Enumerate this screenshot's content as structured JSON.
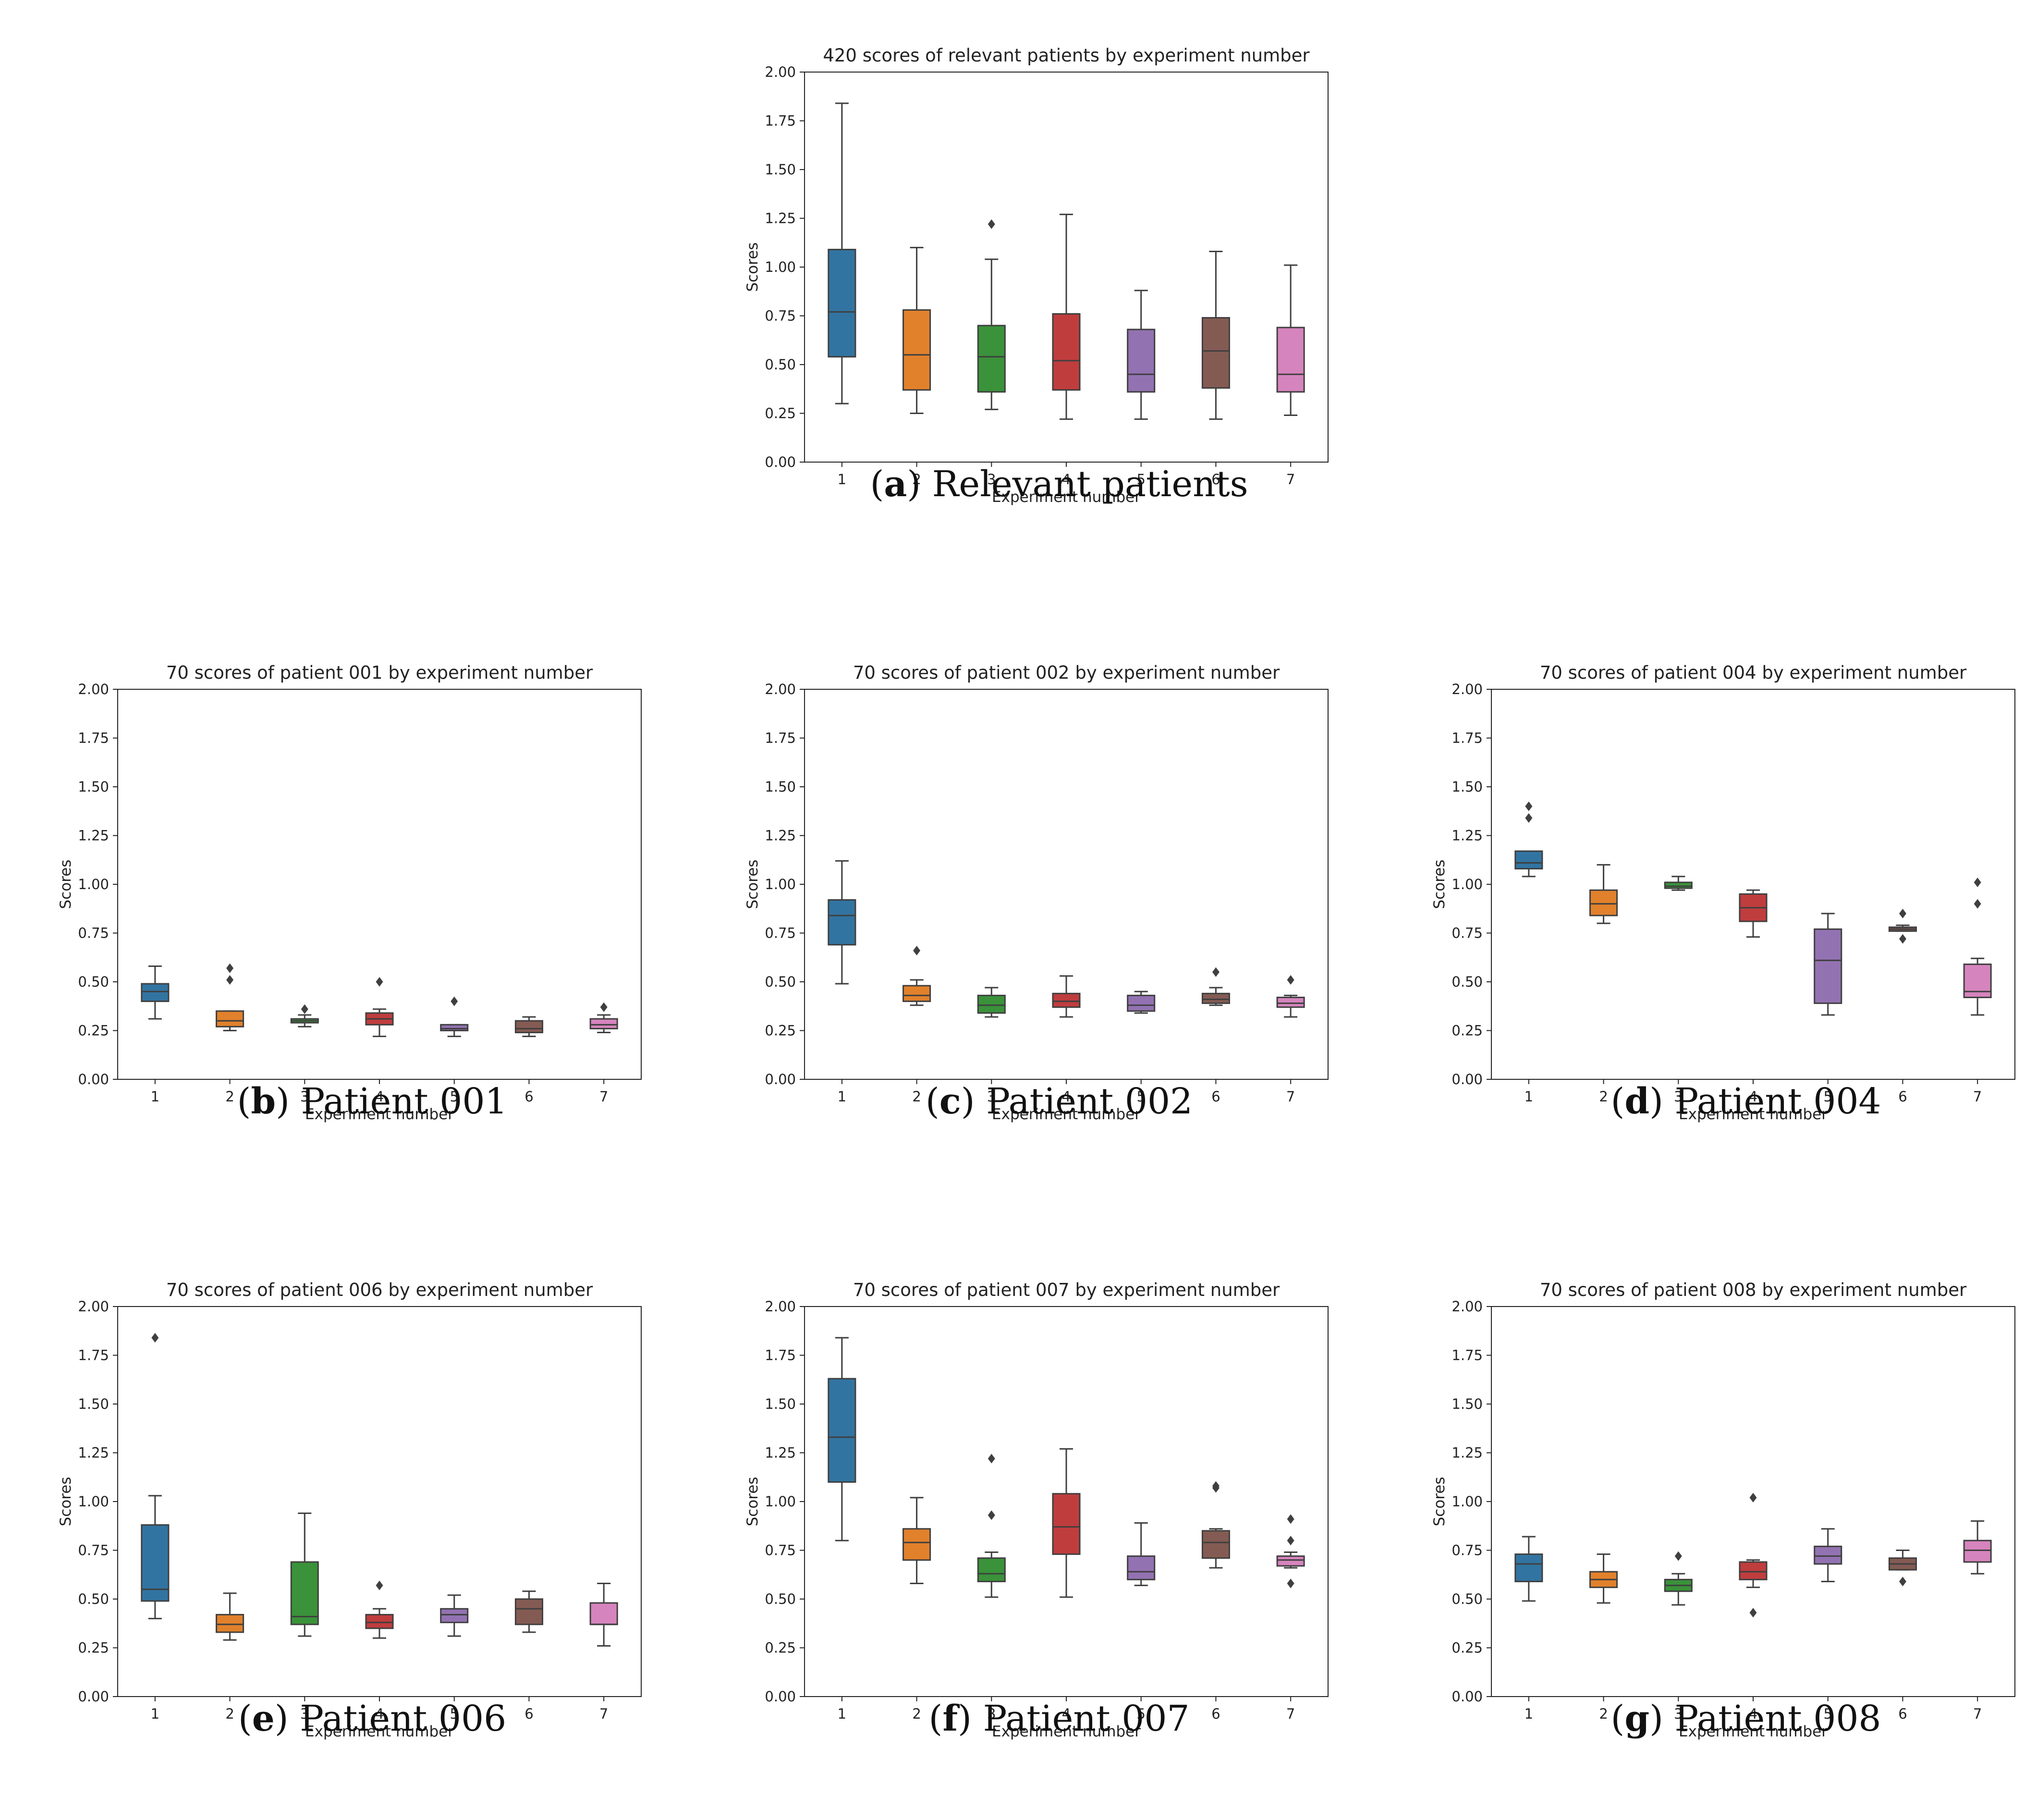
{
  "chart_data": [
    {
      "id": "a",
      "type": "box",
      "title": "420 scores of relevant patients by experiment number",
      "xlabel": "Experiment number",
      "ylabel": "Scores",
      "ylim": [
        0,
        2
      ],
      "yticks": [
        "0.00",
        "0.25",
        "0.50",
        "0.75",
        "1.00",
        "1.25",
        "1.50",
        "1.75",
        "2.00"
      ],
      "categories": [
        "1",
        "2",
        "3",
        "4",
        "5",
        "6",
        "7"
      ],
      "caption_letter": "a",
      "caption_text": "Relevant patients",
      "boxes": [
        {
          "whislo": 0.3,
          "q1": 0.54,
          "med": 0.77,
          "q3": 1.09,
          "whishi": 1.84,
          "fliers": []
        },
        {
          "whislo": 0.25,
          "q1": 0.37,
          "med": 0.55,
          "q3": 0.78,
          "whishi": 1.1,
          "fliers": []
        },
        {
          "whislo": 0.27,
          "q1": 0.36,
          "med": 0.54,
          "q3": 0.7,
          "whishi": 1.04,
          "fliers": [
            1.22
          ]
        },
        {
          "whislo": 0.22,
          "q1": 0.37,
          "med": 0.52,
          "q3": 0.76,
          "whishi": 1.27,
          "fliers": []
        },
        {
          "whislo": 0.22,
          "q1": 0.36,
          "med": 0.45,
          "q3": 0.68,
          "whishi": 0.88,
          "fliers": []
        },
        {
          "whislo": 0.22,
          "q1": 0.38,
          "med": 0.57,
          "q3": 0.74,
          "whishi": 1.08,
          "fliers": []
        },
        {
          "whislo": 0.24,
          "q1": 0.36,
          "med": 0.45,
          "q3": 0.69,
          "whishi": 1.01,
          "fliers": []
        }
      ]
    },
    {
      "id": "b",
      "type": "box",
      "title": "70 scores of patient 001 by experiment number",
      "xlabel": "Experiment number",
      "ylabel": "Scores",
      "ylim": [
        0,
        2
      ],
      "yticks": [
        "0.00",
        "0.25",
        "0.50",
        "0.75",
        "1.00",
        "1.25",
        "1.50",
        "1.75",
        "2.00"
      ],
      "categories": [
        "1",
        "2",
        "3",
        "4",
        "5",
        "6",
        "7"
      ],
      "caption_letter": "b",
      "caption_text": "Patient 001",
      "boxes": [
        {
          "whislo": 0.31,
          "q1": 0.4,
          "med": 0.45,
          "q3": 0.49,
          "whishi": 0.58,
          "fliers": []
        },
        {
          "whislo": 0.25,
          "q1": 0.27,
          "med": 0.3,
          "q3": 0.35,
          "whishi": 0.35,
          "fliers": [
            0.51,
            0.57
          ]
        },
        {
          "whislo": 0.27,
          "q1": 0.29,
          "med": 0.3,
          "q3": 0.31,
          "whishi": 0.33,
          "fliers": [
            0.36
          ]
        },
        {
          "whislo": 0.22,
          "q1": 0.28,
          "med": 0.31,
          "q3": 0.34,
          "whishi": 0.36,
          "fliers": [
            0.5
          ]
        },
        {
          "whislo": 0.22,
          "q1": 0.25,
          "med": 0.26,
          "q3": 0.28,
          "whishi": 0.28,
          "fliers": [
            0.4
          ]
        },
        {
          "whislo": 0.22,
          "q1": 0.24,
          "med": 0.26,
          "q3": 0.3,
          "whishi": 0.32,
          "fliers": []
        },
        {
          "whislo": 0.24,
          "q1": 0.26,
          "med": 0.28,
          "q3": 0.31,
          "whishi": 0.33,
          "fliers": [
            0.37
          ]
        }
      ]
    },
    {
      "id": "c",
      "type": "box",
      "title": "70 scores of patient 002 by experiment number",
      "xlabel": "Experiment number",
      "ylabel": "Scores",
      "ylim": [
        0,
        2
      ],
      "yticks": [
        "0.00",
        "0.25",
        "0.50",
        "0.75",
        "1.00",
        "1.25",
        "1.50",
        "1.75",
        "2.00"
      ],
      "categories": [
        "1",
        "2",
        "3",
        "4",
        "5",
        "6",
        "7"
      ],
      "caption_letter": "c",
      "caption_text": "Patient 002",
      "boxes": [
        {
          "whislo": 0.49,
          "q1": 0.69,
          "med": 0.84,
          "q3": 0.92,
          "whishi": 1.12,
          "fliers": []
        },
        {
          "whislo": 0.38,
          "q1": 0.4,
          "med": 0.43,
          "q3": 0.48,
          "whishi": 0.51,
          "fliers": [
            0.66
          ]
        },
        {
          "whislo": 0.32,
          "q1": 0.34,
          "med": 0.38,
          "q3": 0.43,
          "whishi": 0.47,
          "fliers": []
        },
        {
          "whislo": 0.32,
          "q1": 0.37,
          "med": 0.4,
          "q3": 0.44,
          "whishi": 0.53,
          "fliers": []
        },
        {
          "whislo": 0.34,
          "q1": 0.35,
          "med": 0.38,
          "q3": 0.43,
          "whishi": 0.45,
          "fliers": []
        },
        {
          "whislo": 0.38,
          "q1": 0.39,
          "med": 0.41,
          "q3": 0.44,
          "whishi": 0.47,
          "fliers": [
            0.55
          ]
        },
        {
          "whislo": 0.32,
          "q1": 0.37,
          "med": 0.39,
          "q3": 0.42,
          "whishi": 0.43,
          "fliers": [
            0.51
          ]
        }
      ]
    },
    {
      "id": "d",
      "type": "box",
      "title": "70 scores of patient 004 by experiment number",
      "xlabel": "Experiment number",
      "ylabel": "Scores",
      "ylim": [
        0,
        2
      ],
      "yticks": [
        "0.00",
        "0.25",
        "0.50",
        "0.75",
        "1.00",
        "1.25",
        "1.50",
        "1.75",
        "2.00"
      ],
      "categories": [
        "1",
        "2",
        "3",
        "4",
        "5",
        "6",
        "7"
      ],
      "caption_letter": "d",
      "caption_text": "Patient 004",
      "boxes": [
        {
          "whislo": 1.04,
          "q1": 1.08,
          "med": 1.11,
          "q3": 1.17,
          "whishi": 1.17,
          "fliers": [
            1.34,
            1.4
          ]
        },
        {
          "whislo": 0.8,
          "q1": 0.84,
          "med": 0.9,
          "q3": 0.97,
          "whishi": 1.1,
          "fliers": []
        },
        {
          "whislo": 0.97,
          "q1": 0.98,
          "med": 0.99,
          "q3": 1.01,
          "whishi": 1.04,
          "fliers": []
        },
        {
          "whislo": 0.73,
          "q1": 0.81,
          "med": 0.88,
          "q3": 0.95,
          "whishi": 0.97,
          "fliers": []
        },
        {
          "whislo": 0.33,
          "q1": 0.39,
          "med": 0.61,
          "q3": 0.77,
          "whishi": 0.85,
          "fliers": []
        },
        {
          "whislo": 0.76,
          "q1": 0.76,
          "med": 0.77,
          "q3": 0.78,
          "whishi": 0.79,
          "fliers": [
            0.72,
            0.85
          ]
        },
        {
          "whislo": 0.33,
          "q1": 0.42,
          "med": 0.45,
          "q3": 0.59,
          "whishi": 0.62,
          "fliers": [
            0.9,
            1.01
          ]
        }
      ]
    },
    {
      "id": "e",
      "type": "box",
      "title": "70 scores of patient 006 by experiment number",
      "xlabel": "Experiment number",
      "ylabel": "Scores",
      "ylim": [
        0,
        2
      ],
      "yticks": [
        "0.00",
        "0.25",
        "0.50",
        "0.75",
        "1.00",
        "1.25",
        "1.50",
        "1.75",
        "2.00"
      ],
      "categories": [
        "1",
        "2",
        "3",
        "4",
        "5",
        "6",
        "7"
      ],
      "caption_letter": "e",
      "caption_text": "Patient 006",
      "boxes": [
        {
          "whislo": 0.4,
          "q1": 0.49,
          "med": 0.55,
          "q3": 0.88,
          "whishi": 1.03,
          "fliers": [
            1.84
          ]
        },
        {
          "whislo": 0.29,
          "q1": 0.33,
          "med": 0.37,
          "q3": 0.42,
          "whishi": 0.53,
          "fliers": []
        },
        {
          "whislo": 0.31,
          "q1": 0.37,
          "med": 0.41,
          "q3": 0.69,
          "whishi": 0.94,
          "fliers": []
        },
        {
          "whislo": 0.3,
          "q1": 0.35,
          "med": 0.38,
          "q3": 0.42,
          "whishi": 0.45,
          "fliers": [
            0.57
          ]
        },
        {
          "whislo": 0.31,
          "q1": 0.38,
          "med": 0.42,
          "q3": 0.45,
          "whishi": 0.52,
          "fliers": []
        },
        {
          "whislo": 0.33,
          "q1": 0.37,
          "med": 0.45,
          "q3": 0.5,
          "whishi": 0.54,
          "fliers": []
        },
        {
          "whislo": 0.26,
          "q1": 0.37,
          "med": 0.37,
          "q3": 0.48,
          "whishi": 0.58,
          "fliers": []
        }
      ]
    },
    {
      "id": "f",
      "type": "box",
      "title": "70 scores of patient 007 by experiment number",
      "xlabel": "Experiment number",
      "ylabel": "Scores",
      "ylim": [
        0,
        2
      ],
      "yticks": [
        "0.00",
        "0.25",
        "0.50",
        "0.75",
        "1.00",
        "1.25",
        "1.50",
        "1.75",
        "2.00"
      ],
      "categories": [
        "1",
        "2",
        "3",
        "4",
        "5",
        "6",
        "7"
      ],
      "caption_letter": "f",
      "caption_text": "Patient 007",
      "boxes": [
        {
          "whislo": 0.8,
          "q1": 1.1,
          "med": 1.33,
          "q3": 1.63,
          "whishi": 1.84,
          "fliers": []
        },
        {
          "whislo": 0.58,
          "q1": 0.7,
          "med": 0.79,
          "q3": 0.86,
          "whishi": 1.02,
          "fliers": []
        },
        {
          "whislo": 0.51,
          "q1": 0.59,
          "med": 0.63,
          "q3": 0.71,
          "whishi": 0.74,
          "fliers": [
            0.93,
            1.22
          ]
        },
        {
          "whislo": 0.51,
          "q1": 0.73,
          "med": 0.87,
          "q3": 1.04,
          "whishi": 1.27,
          "fliers": []
        },
        {
          "whislo": 0.57,
          "q1": 0.6,
          "med": 0.64,
          "q3": 0.72,
          "whishi": 0.89,
          "fliers": []
        },
        {
          "whislo": 0.66,
          "q1": 0.71,
          "med": 0.79,
          "q3": 0.85,
          "whishi": 0.86,
          "fliers": [
            1.07,
            1.08
          ]
        },
        {
          "whislo": 0.66,
          "q1": 0.67,
          "med": 0.7,
          "q3": 0.72,
          "whishi": 0.74,
          "fliers": [
            0.58,
            0.8,
            0.91
          ]
        }
      ]
    },
    {
      "id": "g",
      "type": "box",
      "title": "70 scores of patient 008 by experiment number",
      "xlabel": "Experiment number",
      "ylabel": "Scores",
      "ylim": [
        0,
        2
      ],
      "yticks": [
        "0.00",
        "0.25",
        "0.50",
        "0.75",
        "1.00",
        "1.25",
        "1.50",
        "1.75",
        "2.00"
      ],
      "categories": [
        "1",
        "2",
        "3",
        "4",
        "5",
        "6",
        "7"
      ],
      "caption_letter": "g",
      "caption_text": "Patient 008",
      "boxes": [
        {
          "whislo": 0.49,
          "q1": 0.59,
          "med": 0.68,
          "q3": 0.73,
          "whishi": 0.82,
          "fliers": []
        },
        {
          "whislo": 0.48,
          "q1": 0.56,
          "med": 0.6,
          "q3": 0.64,
          "whishi": 0.73,
          "fliers": []
        },
        {
          "whislo": 0.47,
          "q1": 0.54,
          "med": 0.57,
          "q3": 0.6,
          "whishi": 0.63,
          "fliers": [
            0.72
          ]
        },
        {
          "whislo": 0.56,
          "q1": 0.6,
          "med": 0.64,
          "q3": 0.69,
          "whishi": 0.7,
          "fliers": [
            0.43,
            1.02
          ]
        },
        {
          "whislo": 0.59,
          "q1": 0.68,
          "med": 0.72,
          "q3": 0.77,
          "whishi": 0.86,
          "fliers": []
        },
        {
          "whislo": 0.65,
          "q1": 0.65,
          "med": 0.68,
          "q3": 0.71,
          "whishi": 0.75,
          "fliers": [
            0.59
          ]
        },
        {
          "whislo": 0.63,
          "q1": 0.69,
          "med": 0.75,
          "q3": 0.8,
          "whishi": 0.9,
          "fliers": []
        }
      ]
    }
  ],
  "colors": {
    "series": [
      "#3274a1",
      "#e1812c",
      "#3a923a",
      "#c03d3e",
      "#9372b2",
      "#845b53",
      "#d684bd"
    ],
    "line": "#3f3f3f",
    "axes": "#222222"
  }
}
